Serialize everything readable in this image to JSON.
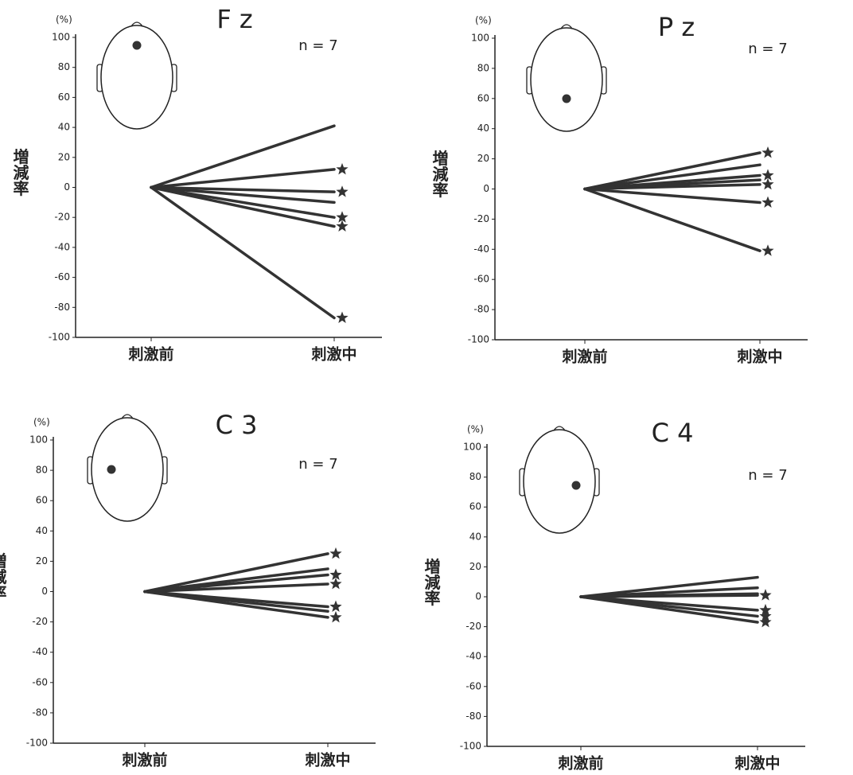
{
  "chart_data": [
    {
      "type": "line",
      "title": "F z",
      "annotation": "n = 7",
      "unit_label": "(%)",
      "ylabel": "増減率",
      "categories": [
        "刺激前",
        "刺激中"
      ],
      "ylim": [
        -100,
        100
      ],
      "yticks": [
        100,
        80,
        60,
        40,
        20,
        0,
        -20,
        -40,
        -60,
        -80,
        -100
      ],
      "color": "#333333",
      "series": [
        {
          "values": [
            0,
            41
          ]
        },
        {
          "values": [
            0,
            12
          ],
          "marker": "star"
        },
        {
          "values": [
            0,
            -3
          ],
          "marker": "star"
        },
        {
          "values": [
            0,
            -10
          ]
        },
        {
          "values": [
            0,
            -20
          ],
          "marker": "star"
        },
        {
          "values": [
            0,
            -26
          ],
          "marker": "star"
        },
        {
          "values": [
            0,
            -87
          ],
          "marker": "star"
        }
      ]
    },
    {
      "type": "line",
      "title": "P z",
      "annotation": "n = 7",
      "unit_label": "(%)",
      "ylabel": "増減率",
      "categories": [
        "刺激前",
        "刺激中"
      ],
      "ylim": [
        -100,
        100
      ],
      "yticks": [
        100,
        80,
        60,
        40,
        20,
        0,
        -20,
        -40,
        -60,
        -80,
        -100
      ],
      "color": "#333333",
      "series": [
        {
          "values": [
            0,
            24
          ],
          "marker": "star"
        },
        {
          "values": [
            0,
            16
          ]
        },
        {
          "values": [
            0,
            9
          ],
          "marker": "star"
        },
        {
          "values": [
            0,
            6
          ]
        },
        {
          "values": [
            0,
            3
          ],
          "marker": "star"
        },
        {
          "values": [
            0,
            -9
          ],
          "marker": "star"
        },
        {
          "values": [
            0,
            -41
          ],
          "marker": "star"
        }
      ]
    },
    {
      "type": "line",
      "title": "C 3",
      "annotation": "n = 7",
      "unit_label": "(%)",
      "ylabel": "増減率",
      "categories": [
        "刺激前",
        "刺激中"
      ],
      "ylim": [
        -100,
        100
      ],
      "yticks": [
        100,
        80,
        60,
        40,
        20,
        0,
        -20,
        -40,
        -60,
        -80,
        -100
      ],
      "color": "#333333",
      "series": [
        {
          "values": [
            0,
            25
          ],
          "marker": "star"
        },
        {
          "values": [
            0,
            15
          ]
        },
        {
          "values": [
            0,
            11
          ],
          "marker": "star"
        },
        {
          "values": [
            0,
            5
          ],
          "marker": "star"
        },
        {
          "values": [
            0,
            -10
          ],
          "marker": "star"
        },
        {
          "values": [
            0,
            -13
          ]
        },
        {
          "values": [
            0,
            -17
          ],
          "marker": "star"
        }
      ]
    },
    {
      "type": "line",
      "title": "C 4",
      "annotation": "n = 7",
      "unit_label": "(%)",
      "ylabel": "増減率",
      "categories": [
        "刺激前",
        "刺激中"
      ],
      "ylim": [
        -100,
        100
      ],
      "yticks": [
        100,
        80,
        60,
        40,
        20,
        0,
        -20,
        -40,
        -60,
        -80,
        -100
      ],
      "color": "#333333",
      "series": [
        {
          "values": [
            0,
            13
          ]
        },
        {
          "values": [
            0,
            6
          ]
        },
        {
          "values": [
            0,
            2
          ]
        },
        {
          "values": [
            0,
            1
          ],
          "marker": "star"
        },
        {
          "values": [
            0,
            -9
          ],
          "marker": "star"
        },
        {
          "values": [
            0,
            -13
          ],
          "marker": "star"
        },
        {
          "values": [
            0,
            -17
          ],
          "marker": "star"
        }
      ]
    }
  ]
}
